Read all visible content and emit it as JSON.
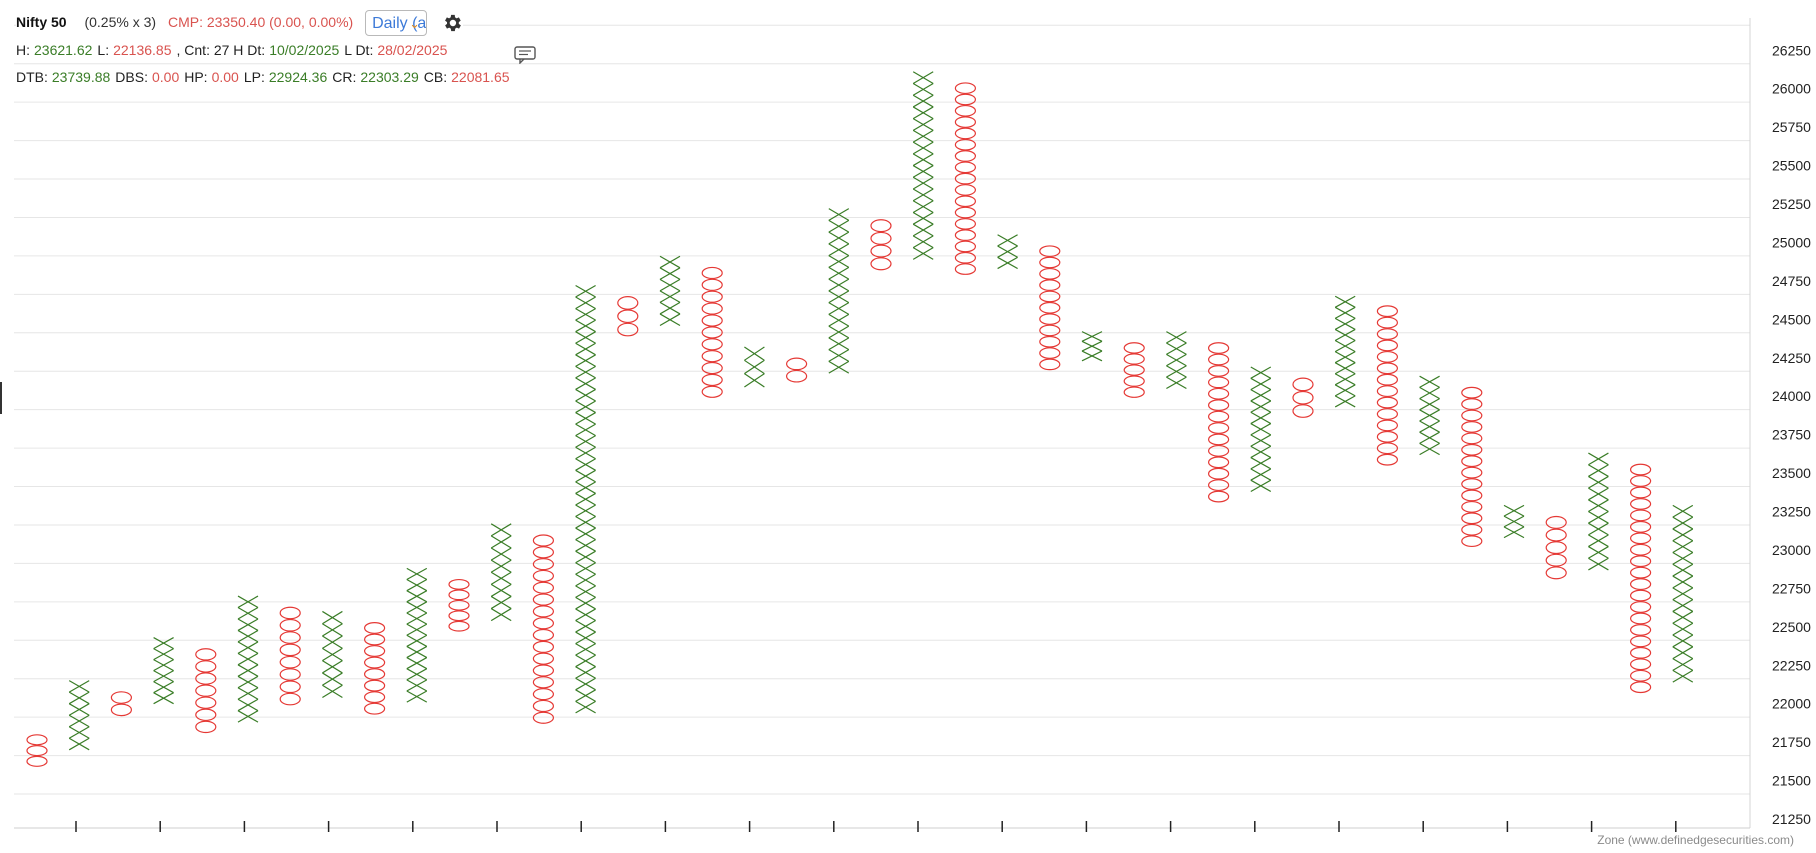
{
  "header": {
    "symbol": "Nifty 50",
    "box_params": "(0.25% x 3)",
    "cmp": "CMP: 23350.40 (0.00, 0.00%)",
    "timeframe": "Daily (a",
    "settings_icon": "gear-icon",
    "comment_icon": "comment-icon",
    "stats_row1": [
      {
        "label": "H:",
        "value": "23621.62",
        "color": "green"
      },
      {
        "label": "L:",
        "value": "22136.85",
        "color": "red"
      },
      {
        "label": ", Cnt: 27 H Dt:",
        "value": "10/02/2025",
        "color": "green"
      },
      {
        "label": "L Dt:",
        "value": "28/02/2025",
        "color": "red"
      }
    ],
    "stats_row2": [
      {
        "label": "DTB:",
        "value": "23739.88",
        "color": "green"
      },
      {
        "label": "DBS:",
        "value": "0.00",
        "color": "red"
      },
      {
        "label": "HP:",
        "value": "0.00",
        "color": "red"
      },
      {
        "label": "LP:",
        "value": "22924.36",
        "color": "green"
      },
      {
        "label": "CR:",
        "value": "22303.29",
        "color": "green"
      },
      {
        "label": "CB:",
        "value": "22081.65",
        "color": "red"
      }
    ]
  },
  "watermark": "Zone (www.definedgesecurities.com)",
  "colors": {
    "x": "#3a7d27",
    "o": "#e53935",
    "grid": "#e6e6e6"
  },
  "chart_data": {
    "type": "point_and_figure",
    "box_size_pct": 0.25,
    "reversal": 3,
    "y_ticks": [
      21250,
      21500,
      21750,
      22000,
      22250,
      22500,
      22750,
      23000,
      23250,
      23500,
      23750,
      24000,
      24250,
      24500,
      24750,
      25000,
      25250,
      25500,
      25750,
      26000,
      26250
    ],
    "ylim": [
      21250,
      26250
    ],
    "grid": true,
    "columns": [
      {
        "type": "O",
        "high": 21800,
        "low": 21590
      },
      {
        "type": "X",
        "low": 21700,
        "high": 22150
      },
      {
        "type": "O",
        "high": 22080,
        "low": 21920
      },
      {
        "type": "X",
        "low": 22000,
        "high": 22430
      },
      {
        "type": "O",
        "high": 22360,
        "low": 21810
      },
      {
        "type": "X",
        "low": 21880,
        "high": 22700
      },
      {
        "type": "O",
        "high": 22630,
        "low": 21990
      },
      {
        "type": "X",
        "low": 22040,
        "high": 22600
      },
      {
        "type": "O",
        "high": 22530,
        "low": 21930
      },
      {
        "type": "X",
        "low": 22010,
        "high": 22880
      },
      {
        "type": "O",
        "high": 22810,
        "low": 22470
      },
      {
        "type": "X",
        "low": 22540,
        "high": 23170
      },
      {
        "type": "O",
        "high": 23100,
        "low": 21870
      },
      {
        "type": "X",
        "low": 21940,
        "high": 24720
      },
      {
        "type": "O",
        "high": 24650,
        "low": 24390
      },
      {
        "type": "X",
        "low": 24460,
        "high": 24910
      },
      {
        "type": "O",
        "high": 24840,
        "low": 23990
      },
      {
        "type": "X",
        "low": 24060,
        "high": 24320
      },
      {
        "type": "O",
        "high": 24250,
        "low": 24090
      },
      {
        "type": "X",
        "low": 24150,
        "high": 25220
      },
      {
        "type": "O",
        "high": 25150,
        "low": 24820
      },
      {
        "type": "X",
        "low": 24890,
        "high": 26110
      },
      {
        "type": "O",
        "high": 26040,
        "low": 24790
      },
      {
        "type": "X",
        "low": 24830,
        "high": 25050
      },
      {
        "type": "O",
        "high": 24980,
        "low": 24170
      },
      {
        "type": "X",
        "low": 24230,
        "high": 24420
      },
      {
        "type": "O",
        "high": 24350,
        "low": 23990
      },
      {
        "type": "X",
        "low": 24050,
        "high": 24420
      },
      {
        "type": "O",
        "high": 24350,
        "low": 23310
      },
      {
        "type": "X",
        "low": 23380,
        "high": 24190
      },
      {
        "type": "O",
        "high": 24120,
        "low": 23860
      },
      {
        "type": "X",
        "low": 23930,
        "high": 24650
      },
      {
        "type": "O",
        "high": 24590,
        "low": 23550
      },
      {
        "type": "X",
        "low": 23620,
        "high": 24130
      },
      {
        "type": "O",
        "high": 24060,
        "low": 23020
      },
      {
        "type": "X",
        "low": 23080,
        "high": 23290
      },
      {
        "type": "O",
        "high": 23220,
        "low": 22810
      },
      {
        "type": "X",
        "low": 22870,
        "high": 23630
      },
      {
        "type": "O",
        "high": 23560,
        "low": 22070
      },
      {
        "type": "X",
        "low": 22140,
        "high": 23290
      }
    ]
  }
}
